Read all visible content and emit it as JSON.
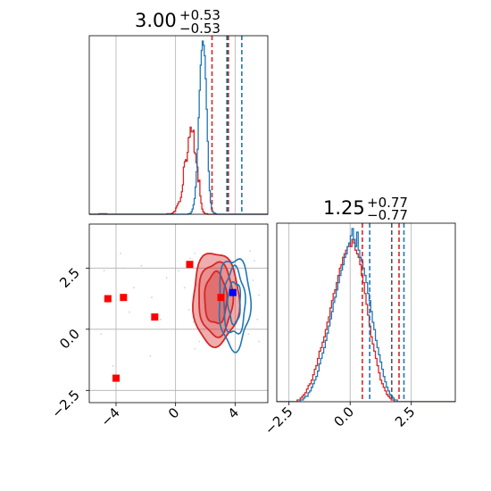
{
  "chart_data": [
    {
      "type": "histogram",
      "panel": "x1-marginal",
      "title": {
        "value": "3.00",
        "plus": "+0.53",
        "minus": "−0.53"
      },
      "xlim": [
        -5.8,
        6.2
      ],
      "grid": true,
      "bin_edges": [
        -5.8,
        6.2
      ],
      "series": [
        {
          "color": "#d62728",
          "counts": [
            0,
            0,
            0,
            0,
            0,
            0,
            0,
            0,
            0,
            0,
            1,
            1,
            1,
            1,
            1,
            0,
            1,
            1,
            0,
            0,
            0,
            0,
            0,
            0,
            0,
            0,
            0,
            0,
            0,
            0,
            0,
            0,
            0,
            0,
            0,
            0,
            0,
            0,
            0,
            0,
            0,
            0,
            0,
            0,
            0,
            0,
            0,
            0,
            0,
            0,
            0,
            0,
            0,
            0,
            0,
            0,
            0,
            0,
            0,
            0,
            0,
            0,
            0,
            0,
            0,
            0,
            0,
            0,
            0,
            0,
            0,
            0,
            0,
            0,
            0,
            0,
            0,
            0,
            0,
            0,
            1,
            1,
            1,
            1,
            1,
            2,
            3,
            5,
            6,
            12,
            16,
            20,
            24,
            24,
            32,
            43,
            56,
            90,
            100,
            104,
            101,
            118,
            146,
            147,
            166,
            157,
            157,
            160,
            118,
            115,
            98,
            90,
            62,
            65,
            35,
            21,
            10,
            5,
            3,
            1,
            1,
            1,
            0,
            0,
            0,
            0,
            0,
            0,
            0,
            0,
            0,
            0,
            0,
            0,
            0,
            0,
            0,
            0,
            0,
            0,
            0,
            0,
            0,
            0,
            0,
            0,
            0,
            0,
            0,
            0,
            0,
            0,
            0,
            0,
            0,
            0,
            0,
            0,
            0,
            0,
            0,
            0,
            0,
            0,
            0,
            0,
            0,
            0,
            0,
            0,
            0,
            0,
            0,
            0,
            0,
            0,
            0,
            0,
            0,
            0,
            0,
            0,
            0,
            0
          ]
        },
        {
          "color": "#1f77b4",
          "counts": [
            0,
            0,
            0,
            0,
            0,
            0,
            0,
            0,
            0,
            0,
            0,
            0,
            0,
            0,
            0,
            0,
            0,
            0,
            0,
            0,
            0,
            0,
            0,
            0,
            0,
            0,
            0,
            0,
            0,
            0,
            0,
            0,
            0,
            0,
            0,
            0,
            0,
            0,
            0,
            0,
            0,
            0,
            0,
            0,
            0,
            0,
            0,
            0,
            0,
            0,
            0,
            0,
            0,
            0,
            0,
            0,
            0,
            0,
            0,
            0,
            0,
            0,
            0,
            0,
            0,
            0,
            0,
            0,
            0,
            0,
            0,
            0,
            0,
            0,
            0,
            0,
            0,
            0,
            0,
            0,
            0,
            0,
            0,
            0,
            0,
            0,
            0,
            0,
            0,
            0,
            0,
            0,
            0,
            0,
            0,
            0,
            0,
            0,
            1,
            1,
            2,
            5,
            10,
            18,
            30,
            52,
            81,
            124,
            184,
            236,
            284,
            312,
            330,
            322,
            302,
            258,
            200,
            139,
            82,
            45,
            22,
            10,
            5,
            3,
            2,
            1,
            0,
            0,
            0,
            0,
            0,
            0,
            0,
            0,
            0,
            0,
            0,
            0,
            0,
            0,
            0,
            0,
            0,
            0,
            0,
            0,
            0,
            0,
            0,
            0,
            0,
            0,
            0,
            0,
            0,
            0,
            0,
            0,
            0,
            0,
            0,
            0,
            0,
            0,
            0,
            0,
            0,
            0,
            0,
            0,
            0,
            0,
            0,
            0,
            0,
            0,
            0
          ]
        }
      ],
      "quantile_lines": [
        {
          "color": "#d62728",
          "values": [
            2.45,
            3.55
          ]
        },
        {
          "color": "#1f77b4",
          "values": [
            3.45,
            4.45
          ]
        },
        {
          "color": "#555555",
          "values": [
            3.5
          ]
        }
      ]
    },
    {
      "type": "contour",
      "panel": "x1-vs-x2",
      "xlim": [
        -5.8,
        6.2
      ],
      "ylim": [
        -3.0,
        4.3
      ],
      "x_ticks": [
        -4,
        0,
        4
      ],
      "y_ticks": [
        -2.5,
        0.0,
        2.5
      ],
      "x_tick_labels": [
        "−4",
        "0",
        "4"
      ],
      "y_tick_labels": [
        "−2.5",
        "0.0",
        "2.5"
      ],
      "grid": true,
      "red_contours": {
        "color": "#d62728",
        "center": [
          2.7,
          1.25
        ],
        "levels": [
          {
            "sx": 1.55,
            "sy": 1.9,
            "fill_opacity": 0.38
          },
          {
            "sx": 1.15,
            "sy": 1.5,
            "fill_opacity": 0.22
          },
          {
            "sx": 0.75,
            "sy": 1.05,
            "fill_opacity": 0.3
          }
        ]
      },
      "blue_contours": {
        "color": "#1f77b4",
        "center": [
          3.95,
          1.1
        ],
        "levels": [
          {
            "sx": 1.05,
            "sy": 1.85
          },
          {
            "sx": 0.72,
            "sy": 1.35
          },
          {
            "sx": 0.42,
            "sy": 0.85
          }
        ]
      },
      "scatter_points": [
        [
          -4.6,
          1.2
        ],
        [
          -3.5,
          2.5
        ],
        [
          -2.8,
          1.7
        ],
        [
          -1.6,
          1.3
        ],
        [
          -0.6,
          2.1
        ],
        [
          0.2,
          2.4
        ],
        [
          1.0,
          2.9
        ],
        [
          1.3,
          3.1
        ],
        [
          1.2,
          0.3
        ],
        [
          1.4,
          1.8
        ],
        [
          1.7,
          2.2
        ],
        [
          5.2,
          2.0
        ],
        [
          5.5,
          0.4
        ],
        [
          5.3,
          2.8
        ],
        [
          4.9,
          -0.2
        ],
        [
          5.6,
          1.4
        ],
        [
          -5.0,
          -0.2
        ],
        [
          -3.7,
          3.1
        ],
        [
          -1.0,
          0.4
        ],
        [
          1.6,
          -0.5
        ],
        [
          -4.2,
          -1.5
        ],
        [
          -2.3,
          2.6
        ],
        [
          0.6,
          1.7
        ],
        [
          5.0,
          3.2
        ],
        [
          -3.1,
          0.7
        ],
        [
          1.3,
          -0.8
        ],
        [
          5.6,
          -0.5
        ],
        [
          -1.7,
          -1.1
        ],
        [
          0.9,
          0.8
        ],
        [
          -4.8,
          2.4
        ]
      ],
      "markers": [
        {
          "color": "#ff0000",
          "points": [
            [
              -4.55,
              1.25
            ],
            [
              -3.5,
              1.3
            ],
            [
              -1.4,
              0.5
            ],
            [
              0.95,
              2.65
            ],
            [
              -4.0,
              -2.0
            ],
            [
              3.05,
              1.3
            ]
          ]
        },
        {
          "color": "#0000ff",
          "points": [
            [
              3.85,
              1.5
            ]
          ]
        }
      ]
    },
    {
      "type": "histogram",
      "panel": "x2-marginal",
      "title": {
        "value": "1.25",
        "plus": "+0.77",
        "minus": "−0.77"
      },
      "xlim": [
        -3.0,
        4.3
      ],
      "x_ticks": [
        -2.5,
        0.0,
        2.5
      ],
      "x_tick_labels": [
        "−2.5",
        "0.0",
        "2.5"
      ],
      "grid": true,
      "bin_edges": [
        -3.0,
        4.3
      ],
      "series": [
        {
          "color": "#d62728",
          "counts": [
            0,
            0,
            0,
            0,
            0,
            0,
            0,
            0,
            0,
            0,
            0,
            0,
            0,
            1,
            1,
            2,
            3,
            4,
            5,
            7,
            9,
            10,
            12,
            15,
            18,
            20,
            24,
            28,
            30,
            33,
            36,
            40,
            44,
            47,
            52,
            56,
            60,
            62,
            66,
            70,
            74,
            76,
            80,
            82,
            84,
            86,
            88,
            86,
            90,
            88,
            84,
            82,
            80,
            76,
            70,
            66,
            60,
            54,
            48,
            42,
            36,
            32,
            28,
            24,
            20,
            16,
            12,
            10,
            8,
            6,
            4,
            3,
            2,
            1,
            1,
            0,
            0,
            0,
            0,
            0,
            0,
            0,
            0,
            0,
            0,
            0,
            0,
            0,
            0,
            0,
            0,
            0,
            0,
            0,
            0,
            0,
            0,
            0,
            0,
            0,
            0,
            0,
            0,
            0,
            0,
            0,
            0,
            0,
            0,
            0,
            0,
            0,
            0,
            0
          ]
        },
        {
          "color": "#1f77b4",
          "counts": [
            0,
            0,
            0,
            0,
            0,
            0,
            0,
            0,
            0,
            0,
            0,
            0,
            0,
            0,
            0,
            1,
            1,
            2,
            3,
            3,
            5,
            6,
            8,
            10,
            12,
            14,
            17,
            21,
            24,
            27,
            30,
            34,
            38,
            42,
            46,
            50,
            55,
            58,
            62,
            66,
            70,
            73,
            76,
            80,
            82,
            86,
            88,
            92,
            96,
            90,
            86,
            94,
            84,
            80,
            78,
            74,
            70,
            66,
            60,
            56,
            50,
            44,
            40,
            34,
            30,
            26,
            22,
            18,
            14,
            11,
            8,
            6,
            4,
            3,
            2,
            1,
            1,
            0,
            0,
            0,
            0,
            0,
            0,
            0,
            0,
            0,
            0,
            0,
            0,
            0,
            0,
            0,
            0,
            0,
            0,
            0,
            0,
            0,
            0,
            0,
            0,
            0,
            0,
            0,
            0,
            0,
            0,
            0,
            0,
            0,
            0,
            0,
            0,
            0
          ]
        }
      ],
      "quantile_lines": [
        {
          "color": "#d62728",
          "values": [
            0.5,
            2.0
          ]
        },
        {
          "color": "#1f77b4",
          "values": [
            0.8,
            2.2
          ]
        },
        {
          "color": "#555555",
          "values": [
            1.7
          ]
        }
      ]
    }
  ]
}
